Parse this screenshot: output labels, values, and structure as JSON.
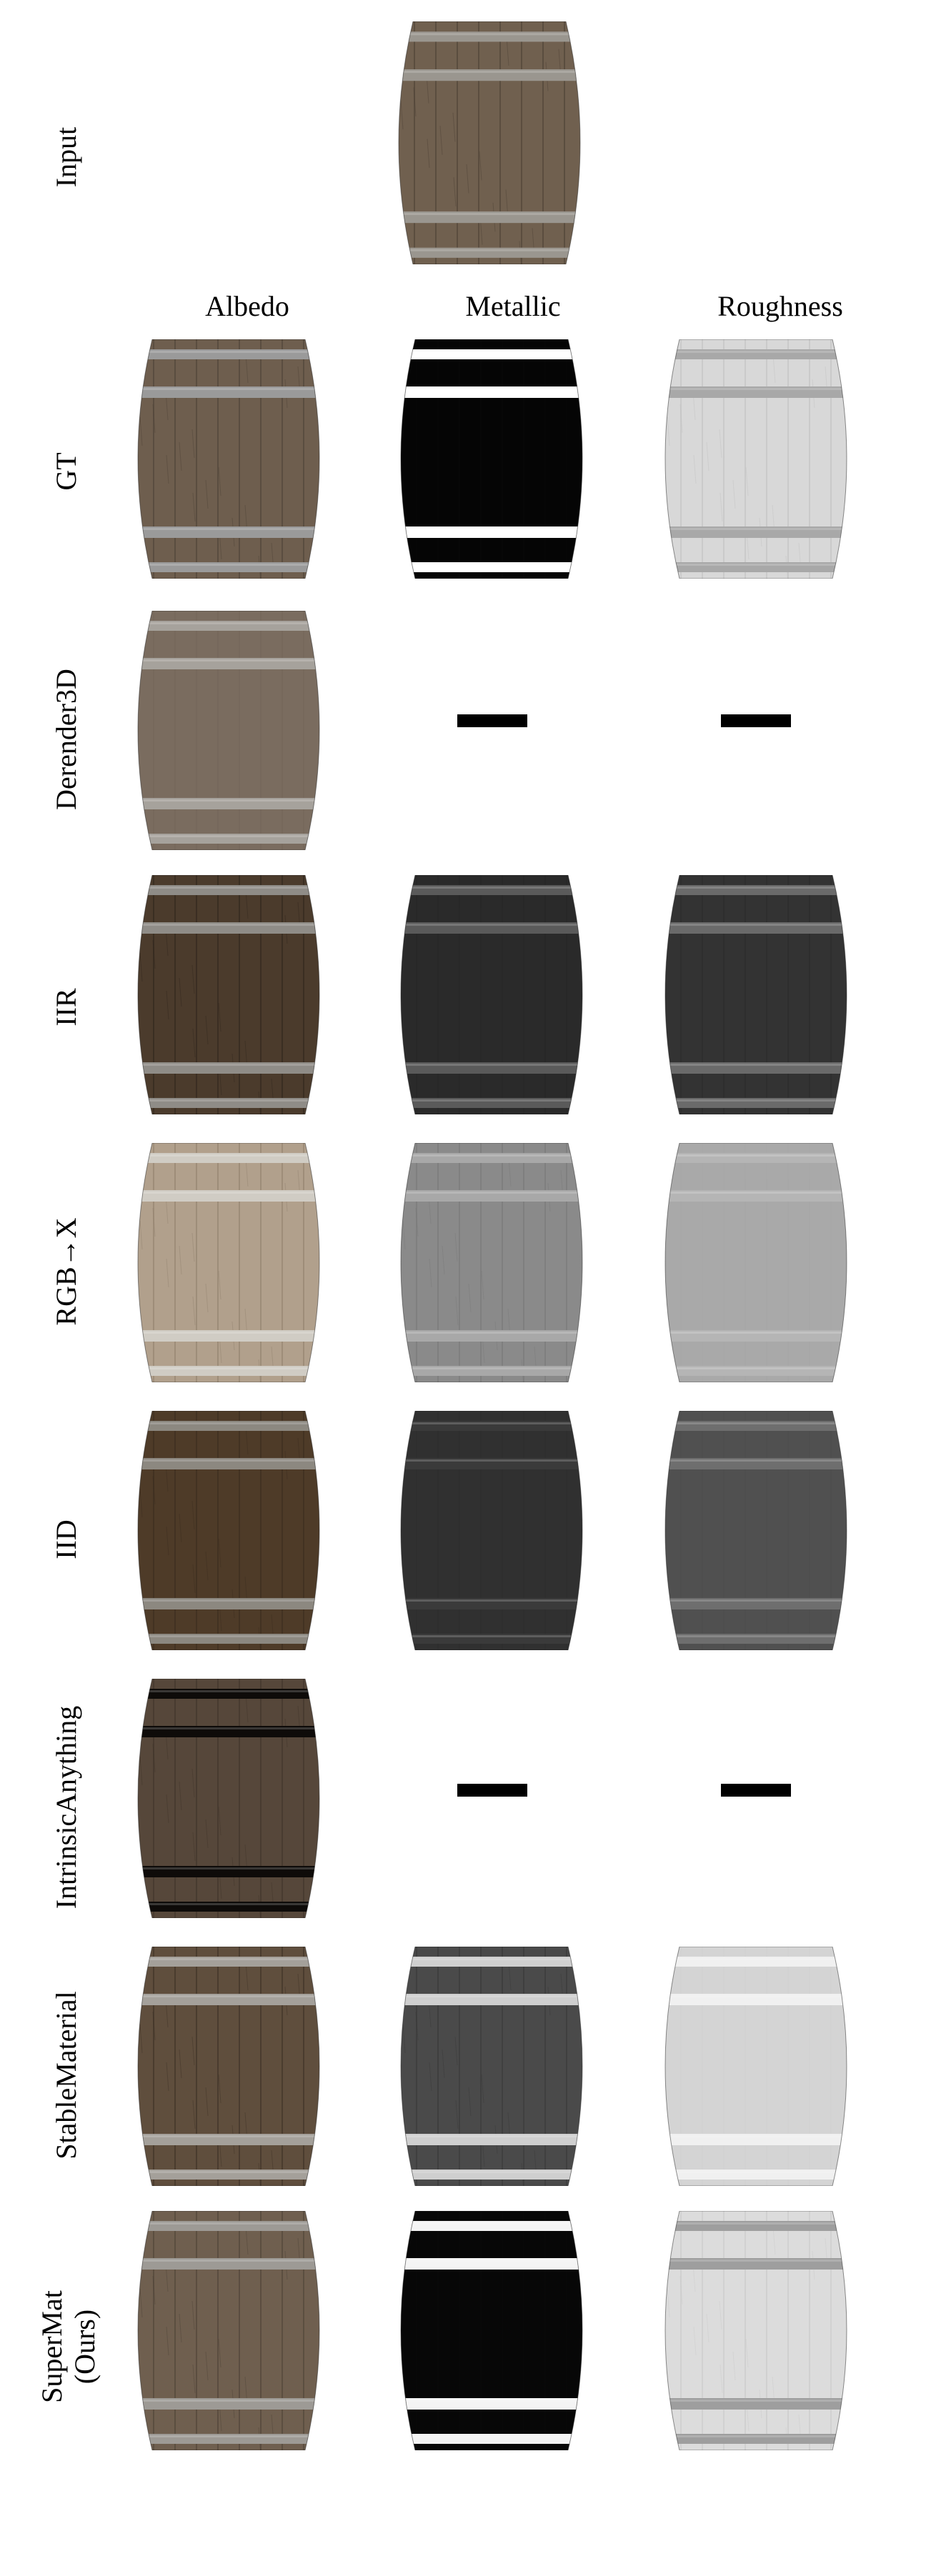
{
  "header": {
    "input_label": "Input"
  },
  "columns": [
    {
      "label": "Albedo"
    },
    {
      "label": "Metallic"
    },
    {
      "label": "Roughness"
    }
  ],
  "rows": [
    {
      "label": "GT"
    },
    {
      "label": "Derender3D"
    },
    {
      "label": "IIR"
    },
    {
      "label": "RGB→X"
    },
    {
      "label": "IID"
    },
    {
      "label": "IntrinsicAnything"
    },
    {
      "label": "StableMaterial"
    },
    {
      "label": "SuperMat",
      "label_line2": "(Ours)"
    }
  ],
  "palette": {
    "wood_natural": "#6e5e4e",
    "band_steel": "#9a9a9a",
    "metallic_gt": "#060606",
    "roughness_gt": "#d9d9d9",
    "placeholder": "#000000"
  }
}
